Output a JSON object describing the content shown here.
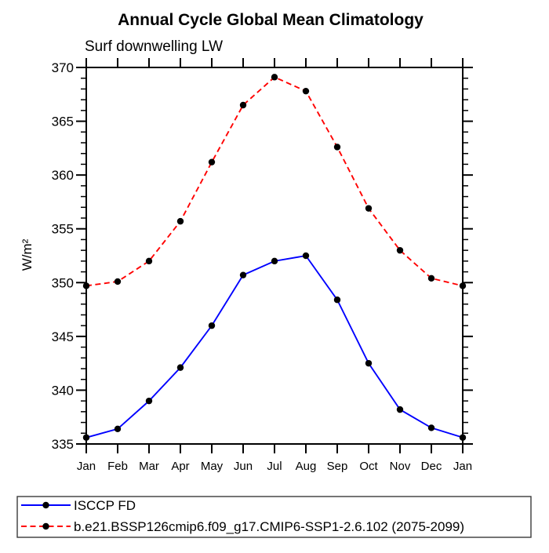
{
  "title": "Annual Cycle Global Mean Climatology",
  "subtitle": "Surf downwelling LW",
  "chart_data": {
    "type": "line",
    "x": [
      "Jan",
      "Feb",
      "Mar",
      "Apr",
      "May",
      "Jun",
      "Jul",
      "Aug",
      "Sep",
      "Oct",
      "Nov",
      "Dec",
      "Jan"
    ],
    "series": [
      {
        "name": "ISCCP FD",
        "color": "#0000ff",
        "line_style": "solid",
        "marker": "filled-circle",
        "marker_color": "#000000",
        "values": [
          335.6,
          336.4,
          339.0,
          342.1,
          346.0,
          350.7,
          352.0,
          352.5,
          348.4,
          342.5,
          338.2,
          336.5,
          335.6
        ]
      },
      {
        "name": "b.e21.BSSP126cmip6.f09_g17.CMIP6-SSP1-2.6.102 (2075-2099)",
        "color": "#ff0000",
        "line_style": "dashed",
        "marker": "filled-circle",
        "marker_color": "#000000",
        "values": [
          349.7,
          350.1,
          352.0,
          355.7,
          361.2,
          366.5,
          369.1,
          367.8,
          362.6,
          356.9,
          353.0,
          350.4,
          349.7
        ]
      }
    ],
    "xlabel": "",
    "ylabel": "W/m²",
    "ylim": [
      335,
      370
    ],
    "y_major_ticks": [
      335,
      340,
      345,
      350,
      355,
      360,
      365,
      370
    ],
    "y_minor_step": 1,
    "grid": false,
    "legend_position": "bottom",
    "axis_color": "#000000",
    "background_color": "#ffffff"
  },
  "legend": {
    "entries": [
      {
        "label": "ISCCP FD"
      },
      {
        "label": "b.e21.BSSP126cmip6.f09_g17.CMIP6-SSP1-2.6.102 (2075-2099)"
      }
    ]
  }
}
